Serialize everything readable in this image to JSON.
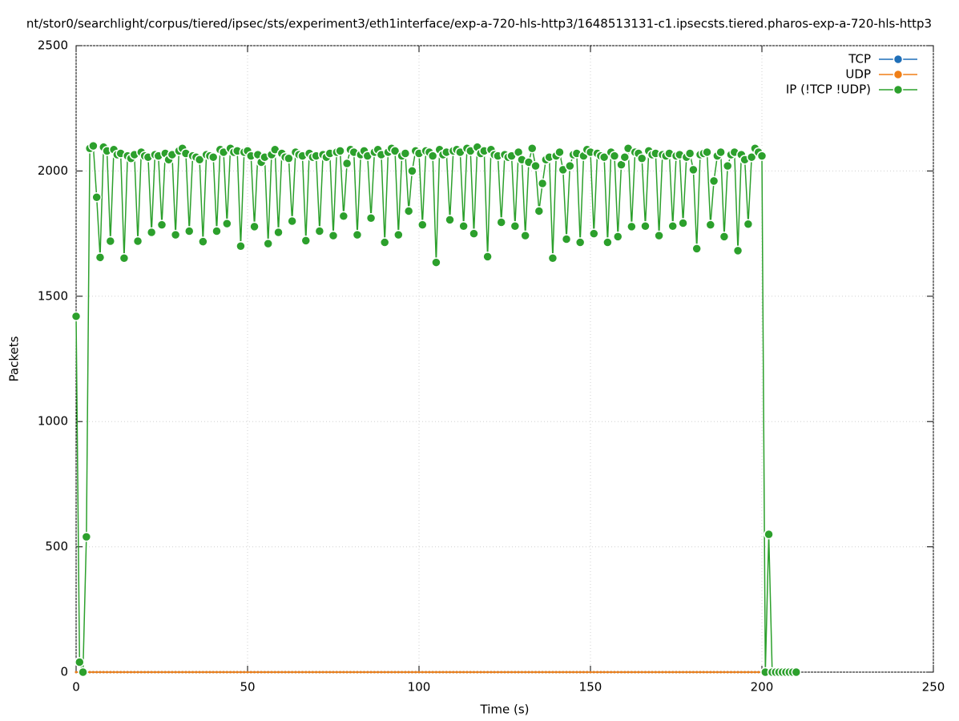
{
  "chart_data": {
    "type": "line",
    "title": "nt/stor0/searchlight/corpus/tiered/ipsec/sts/experiment3/eth1interface/exp-a-720-hls-http3/1648513131-c1.ipsecsts.tiered.pharos-exp-a-720-hls-http3",
    "xlabel": "Time (s)",
    "ylabel": "Packets",
    "xlim": [
      0,
      250
    ],
    "xticks": [
      0,
      50,
      100,
      150,
      200,
      250
    ],
    "ylim": [
      0,
      2500
    ],
    "yticks": [
      0,
      500,
      1000,
      1500,
      2000,
      2500
    ],
    "grid": true,
    "legend": "upper right",
    "x": [
      0,
      1,
      2,
      3,
      4,
      5,
      6,
      7,
      8,
      9,
      10,
      11,
      12,
      13,
      14,
      15,
      16,
      17,
      18,
      19,
      20,
      21,
      22,
      23,
      24,
      25,
      26,
      27,
      28,
      29,
      30,
      31,
      32,
      33,
      34,
      35,
      36,
      37,
      38,
      39,
      40,
      41,
      42,
      43,
      44,
      45,
      46,
      47,
      48,
      49,
      50,
      51,
      52,
      53,
      54,
      55,
      56,
      57,
      58,
      59,
      60,
      61,
      62,
      63,
      64,
      65,
      66,
      67,
      68,
      69,
      70,
      71,
      72,
      73,
      74,
      75,
      76,
      77,
      78,
      79,
      80,
      81,
      82,
      83,
      84,
      85,
      86,
      87,
      88,
      89,
      90,
      91,
      92,
      93,
      94,
      95,
      96,
      97,
      98,
      99,
      100,
      101,
      102,
      103,
      104,
      105,
      106,
      107,
      108,
      109,
      110,
      111,
      112,
      113,
      114,
      115,
      116,
      117,
      118,
      119,
      120,
      121,
      122,
      123,
      124,
      125,
      126,
      127,
      128,
      129,
      130,
      131,
      132,
      133,
      134,
      135,
      136,
      137,
      138,
      139,
      140,
      141,
      142,
      143,
      144,
      145,
      146,
      147,
      148,
      149,
      150,
      151,
      152,
      153,
      154,
      155,
      156,
      157,
      158,
      159,
      160,
      161,
      162,
      163,
      164,
      165,
      166,
      167,
      168,
      169,
      170,
      171,
      172,
      173,
      174,
      175,
      176,
      177,
      178,
      179,
      180,
      181,
      182,
      183,
      184,
      185,
      186,
      187,
      188,
      189,
      190,
      191,
      192,
      193,
      194,
      195,
      196,
      197,
      198,
      199,
      200,
      201,
      202,
      203,
      204,
      205,
      206,
      207,
      208,
      209,
      210
    ],
    "series": [
      {
        "name": "TCP",
        "color": "#1f6fb8",
        "values": [
          0,
          0,
          0,
          0,
          0,
          0,
          0,
          0,
          0,
          0,
          0,
          0,
          0,
          0,
          0,
          0,
          0,
          0,
          0,
          0,
          0,
          0,
          0,
          0,
          0,
          0,
          0,
          0,
          0,
          0,
          0,
          0,
          0,
          0,
          0,
          0,
          0,
          0,
          0,
          0,
          0,
          0,
          0,
          0,
          0,
          0,
          0,
          0,
          0,
          0,
          0,
          0,
          0,
          0,
          0,
          0,
          0,
          0,
          0,
          0,
          0,
          0,
          0,
          0,
          0,
          0,
          0,
          0,
          0,
          0,
          0,
          0,
          0,
          0,
          0,
          0,
          0,
          0,
          0,
          0,
          0,
          0,
          0,
          0,
          0,
          0,
          0,
          0,
          0,
          0,
          0,
          0,
          0,
          0,
          0,
          0,
          0,
          0,
          0,
          0,
          0,
          0,
          0,
          0,
          0,
          0,
          0,
          0,
          0,
          0,
          0,
          0,
          0,
          0,
          0,
          0,
          0,
          0,
          0,
          0,
          0,
          0,
          0,
          0,
          0,
          0,
          0,
          0,
          0,
          0,
          0,
          0,
          0,
          0,
          0,
          0,
          0,
          0,
          0,
          0,
          0,
          0,
          0,
          0,
          0,
          0,
          0,
          0,
          0,
          0,
          0,
          0,
          0,
          0,
          0,
          0,
          0,
          0,
          0,
          0,
          0,
          0,
          0,
          0,
          0,
          0,
          0,
          0,
          0,
          0,
          0,
          0,
          0,
          0,
          0,
          0,
          0,
          0,
          0,
          0,
          0,
          0,
          0,
          0,
          0,
          0,
          0,
          0,
          0,
          0,
          0,
          0,
          0,
          0,
          0,
          0,
          0,
          0,
          0,
          0,
          0,
          0,
          0,
          0,
          0,
          0,
          0,
          0,
          0,
          0,
          0
        ]
      },
      {
        "name": "UDP",
        "color": "#f07f16",
        "values": [
          0,
          0,
          0,
          0,
          0,
          0,
          0,
          0,
          0,
          0,
          0,
          0,
          0,
          0,
          0,
          0,
          0,
          0,
          0,
          0,
          0,
          0,
          0,
          0,
          0,
          0,
          0,
          0,
          0,
          0,
          0,
          0,
          0,
          0,
          0,
          0,
          0,
          0,
          0,
          0,
          0,
          0,
          0,
          0,
          0,
          0,
          0,
          0,
          0,
          0,
          0,
          0,
          0,
          0,
          0,
          0,
          0,
          0,
          0,
          0,
          0,
          0,
          0,
          0,
          0,
          0,
          0,
          0,
          0,
          0,
          0,
          0,
          0,
          0,
          0,
          0,
          0,
          0,
          0,
          0,
          0,
          0,
          0,
          0,
          0,
          0,
          0,
          0,
          0,
          0,
          0,
          0,
          0,
          0,
          0,
          0,
          0,
          0,
          0,
          0,
          0,
          0,
          0,
          0,
          0,
          0,
          0,
          0,
          0,
          0,
          0,
          0,
          0,
          0,
          0,
          0,
          0,
          0,
          0,
          0,
          0,
          0,
          0,
          0,
          0,
          0,
          0,
          0,
          0,
          0,
          0,
          0,
          0,
          0,
          0,
          0,
          0,
          0,
          0,
          0,
          0,
          0,
          0,
          0,
          0,
          0,
          0,
          0,
          0,
          0,
          0,
          0,
          0,
          0,
          0,
          0,
          0,
          0,
          0,
          0,
          0,
          0,
          0,
          0,
          0,
          0,
          0,
          0,
          0,
          0,
          0,
          0,
          0,
          0,
          0,
          0,
          0,
          0,
          0,
          0,
          0,
          0,
          0,
          0,
          0,
          0,
          0,
          0,
          0,
          0,
          0,
          0,
          0,
          0,
          0,
          0,
          0,
          0,
          0,
          0,
          0,
          0,
          0,
          0,
          0,
          0,
          0,
          0,
          0,
          0,
          0
        ]
      },
      {
        "name": "IP (!TCP  !UDP)",
        "color": "#2ca02c",
        "values": [
          1420,
          40,
          0,
          540,
          2090,
          2100,
          1895,
          1655,
          2095,
          2080,
          1720,
          2085,
          2065,
          2070,
          1652,
          2060,
          2050,
          2065,
          1720,
          2075,
          2060,
          2055,
          1755,
          2065,
          2060,
          1785,
          2070,
          2045,
          2065,
          1745,
          2080,
          2090,
          2070,
          1760,
          2060,
          2055,
          2045,
          1718,
          2065,
          2060,
          2055,
          1760,
          2085,
          2075,
          1790,
          2090,
          2075,
          2080,
          1700,
          2075,
          2080,
          2060,
          1778,
          2065,
          2035,
          2055,
          1710,
          2065,
          2085,
          1755,
          2070,
          2055,
          2050,
          1800,
          2075,
          2065,
          2060,
          1722,
          2070,
          2055,
          2060,
          1760,
          2065,
          2055,
          2070,
          1742,
          2075,
          2080,
          1820,
          2030,
          2085,
          2075,
          1745,
          2065,
          2080,
          2060,
          1812,
          2075,
          2085,
          2065,
          1715,
          2075,
          2090,
          2080,
          1745,
          2060,
          2070,
          1840,
          2000,
          2080,
          2070,
          1785,
          2080,
          2075,
          2060,
          1635,
          2085,
          2065,
          2075,
          1805,
          2080,
          2085,
          2075,
          1780,
          2090,
          2080,
          1750,
          2095,
          2070,
          2080,
          1658,
          2085,
          2065,
          2060,
          1795,
          2065,
          2055,
          2060,
          1780,
          2075,
          2045,
          1742,
          2035,
          2090,
          2020,
          1840,
          1950,
          2045,
          2055,
          1652,
          2060,
          2075,
          2005,
          1728,
          2020,
          2065,
          2070,
          1715,
          2060,
          2085,
          2075,
          1750,
          2070,
          2060,
          2055,
          1715,
          2075,
          2060,
          1738,
          2025,
          2055,
          2090,
          1778,
          2075,
          2070,
          2050,
          1780,
          2080,
          2065,
          2070,
          1742,
          2065,
          2060,
          2070,
          1780,
          2060,
          2065,
          1792,
          2055,
          2070,
          2005,
          1690,
          2065,
          2070,
          2075,
          1785,
          1960,
          2060,
          2075,
          1738,
          2020,
          2065,
          2075,
          1682,
          2065,
          2045,
          1788,
          2055,
          2090,
          2075,
          2060,
          0,
          550,
          0,
          0,
          0,
          0,
          0,
          0,
          0,
          0
        ]
      }
    ]
  }
}
